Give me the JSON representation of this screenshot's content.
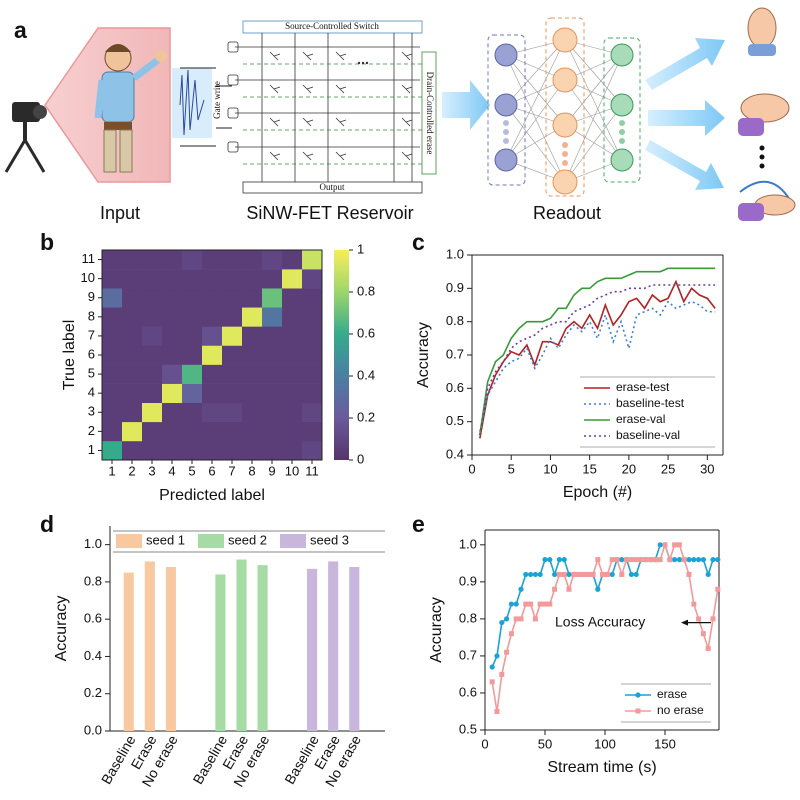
{
  "diagram": {
    "label": "a",
    "switch": "Source-Controlled Switch",
    "gate": "Gate write",
    "drain": "Drain-Controlled erase",
    "output": "Output",
    "input": "Input",
    "reservoir": "SiNW-FET Reservoir",
    "readout": "Readout"
  },
  "chart_data": [
    {
      "type": "heatmap",
      "label": "b",
      "xlabel": "Predicted label",
      "ylabel": "True label",
      "x_categories": [
        "1",
        "2",
        "3",
        "4",
        "5",
        "6",
        "7",
        "8",
        "9",
        "10",
        "11"
      ],
      "y_categories": [
        "1",
        "2",
        "3",
        "4",
        "5",
        "6",
        "7",
        "8",
        "9",
        "10",
        "11"
      ],
      "z": [
        [
          0.6,
          0.05,
          0.05,
          0.05,
          0.05,
          0.05,
          0.05,
          0.05,
          0.05,
          0.05,
          0.1
        ],
        [
          0.05,
          0.95,
          0.05,
          0.05,
          0.05,
          0.05,
          0.05,
          0.05,
          0.05,
          0.05,
          0.05
        ],
        [
          0.05,
          0.05,
          0.95,
          0.05,
          0.05,
          0.1,
          0.1,
          0.05,
          0.05,
          0.05,
          0.1
        ],
        [
          0.05,
          0.05,
          0.05,
          0.95,
          0.25,
          0.05,
          0.05,
          0.05,
          0.05,
          0.05,
          0.05
        ],
        [
          0.05,
          0.05,
          0.05,
          0.15,
          0.65,
          0.05,
          0.05,
          0.05,
          0.05,
          0.05,
          0.05
        ],
        [
          0.05,
          0.05,
          0.05,
          0.05,
          0.05,
          0.95,
          0.05,
          0.05,
          0.05,
          0.05,
          0.05
        ],
        [
          0.05,
          0.05,
          0.1,
          0.05,
          0.05,
          0.15,
          0.95,
          0.05,
          0.05,
          0.05,
          0.05
        ],
        [
          0.05,
          0.05,
          0.05,
          0.05,
          0.05,
          0.05,
          0.05,
          0.95,
          0.35,
          0.05,
          0.05
        ],
        [
          0.3,
          0.05,
          0.05,
          0.05,
          0.05,
          0.05,
          0.05,
          0.05,
          0.7,
          0.05,
          0.05
        ],
        [
          0.05,
          0.05,
          0.05,
          0.05,
          0.05,
          0.05,
          0.05,
          0.05,
          0.05,
          0.95,
          0.1
        ],
        [
          0.05,
          0.05,
          0.05,
          0.05,
          0.1,
          0.05,
          0.05,
          0.05,
          0.1,
          0.05,
          0.9
        ]
      ],
      "zlim": [
        0,
        1
      ],
      "zticks": [
        0,
        0.2,
        0.4,
        0.6,
        0.8,
        1
      ],
      "colorscale": [
        [
          0,
          "#55346b"
        ],
        [
          0.2,
          "#6b5a9c"
        ],
        [
          0.4,
          "#4a7fa3"
        ],
        [
          0.6,
          "#36ab8c"
        ],
        [
          0.8,
          "#9dd66b"
        ],
        [
          1,
          "#f6ee5a"
        ]
      ]
    },
    {
      "type": "line",
      "label": "c",
      "xlabel": "Epoch (#)",
      "ylabel": "Accuracy",
      "x": [
        1,
        2,
        3,
        4,
        5,
        6,
        7,
        8,
        9,
        10,
        11,
        12,
        13,
        14,
        15,
        16,
        17,
        18,
        19,
        20,
        21,
        22,
        23,
        24,
        25,
        26,
        27,
        28,
        29,
        30,
        31
      ],
      "xlim": [
        0,
        32
      ],
      "xticks": [
        0,
        5,
        10,
        15,
        20,
        25,
        30
      ],
      "ylim": [
        0.4,
        1.0
      ],
      "yticks": [
        0.4,
        0.5,
        0.6,
        0.7,
        0.8,
        0.9,
        {
          "value": 1,
          "label": "1.0"
        }
      ],
      "legend": "lower right",
      "series": [
        {
          "name": "erase-test",
          "color": "#b22222",
          "line_style": "solid",
          "values": [
            0.45,
            0.58,
            0.64,
            0.68,
            0.71,
            0.7,
            0.73,
            0.67,
            0.74,
            0.74,
            0.73,
            0.78,
            0.8,
            0.78,
            0.82,
            0.78,
            0.85,
            0.79,
            0.82,
            0.86,
            0.87,
            0.84,
            0.88,
            0.86,
            0.87,
            0.92,
            0.86,
            0.9,
            0.88,
            0.87,
            0.84
          ]
        },
        {
          "name": "baseline-test",
          "color": "#3f7fd0",
          "line_style": "dotted",
          "values": [
            0.47,
            0.58,
            0.62,
            0.66,
            0.68,
            0.69,
            0.72,
            0.66,
            0.7,
            0.75,
            0.72,
            0.76,
            0.79,
            0.77,
            0.8,
            0.75,
            0.82,
            0.74,
            0.8,
            0.72,
            0.82,
            0.83,
            0.84,
            0.82,
            0.86,
            0.84,
            0.85,
            0.86,
            0.85,
            0.83,
            0.83
          ]
        },
        {
          "name": "erase-val",
          "color": "#3a9a3a",
          "line_style": "solid",
          "values": [
            0.46,
            0.62,
            0.68,
            0.7,
            0.75,
            0.78,
            0.8,
            0.8,
            0.8,
            0.81,
            0.84,
            0.84,
            0.88,
            0.9,
            0.9,
            0.92,
            0.93,
            0.93,
            0.93,
            0.94,
            0.95,
            0.95,
            0.95,
            0.95,
            0.96,
            0.96,
            0.96,
            0.96,
            0.96,
            0.96,
            0.96
          ]
        },
        {
          "name": "baseline-val",
          "color": "#6a3fa0",
          "line_style": "dotted",
          "values": [
            0.46,
            0.6,
            0.65,
            0.68,
            0.72,
            0.74,
            0.75,
            0.76,
            0.78,
            0.79,
            0.8,
            0.8,
            0.83,
            0.84,
            0.85,
            0.87,
            0.88,
            0.89,
            0.89,
            0.9,
            0.9,
            0.9,
            0.91,
            0.91,
            0.91,
            0.91,
            0.91,
            0.91,
            0.91,
            0.91,
            0.91
          ]
        }
      ]
    },
    {
      "type": "bar",
      "label": "d",
      "ylabel": "Accuracy",
      "categories": [
        "Baseline",
        "Erase",
        "No erase"
      ],
      "ylim": [
        0,
        1.1
      ],
      "yticks": [
        {
          "value": 0,
          "label": "0.0"
        },
        0.2,
        0.4,
        0.6,
        0.8,
        {
          "value": 1,
          "label": "1.0"
        }
      ],
      "legend": "top",
      "series": [
        {
          "name": "seed 1",
          "color": "#f8c9a0",
          "values": [
            0.85,
            0.91,
            0.88
          ]
        },
        {
          "name": "seed 2",
          "color": "#a6dba6",
          "values": [
            0.84,
            0.92,
            0.89
          ]
        },
        {
          "name": "seed 3",
          "color": "#c9b6dc",
          "values": [
            0.87,
            0.91,
            0.88
          ]
        }
      ]
    },
    {
      "type": "line",
      "label": "e",
      "xlabel": "Stream time (s)",
      "ylabel": "Accuracy",
      "x": [
        6,
        10,
        14,
        18,
        22,
        26,
        30,
        34,
        38,
        42,
        46,
        50,
        54,
        58,
        62,
        66,
        70,
        74,
        78,
        82,
        86,
        90,
        94,
        98,
        102,
        106,
        110,
        114,
        118,
        122,
        126,
        130,
        134,
        138,
        142,
        146,
        150,
        154,
        158,
        162,
        166,
        170,
        174,
        178,
        182,
        186,
        190,
        194
      ],
      "xlim": [
        0,
        195
      ],
      "xticks": [
        0,
        50,
        100,
        150
      ],
      "ylim": [
        0.5,
        1.04
      ],
      "yticks": [
        0.5,
        0.6,
        0.7,
        0.8,
        0.9,
        {
          "value": 1,
          "label": "1.0"
        }
      ],
      "legend": "lower right",
      "annotation": "Loss Accuracy",
      "series": [
        {
          "name": "erase",
          "color": "#1aa3d4",
          "line_style": "solid",
          "marker": "circle",
          "values": [
            0.67,
            0.7,
            0.79,
            0.8,
            0.84,
            0.84,
            0.88,
            0.92,
            0.92,
            0.92,
            0.92,
            0.96,
            0.96,
            0.92,
            0.96,
            0.96,
            0.92,
            0.92,
            0.92,
            0.92,
            0.92,
            0.92,
            0.88,
            0.92,
            0.92,
            0.92,
            0.96,
            0.96,
            0.96,
            0.92,
            0.92,
            0.96,
            0.96,
            0.96,
            0.96,
            1.0,
            1.0,
            0.96,
            0.96,
            0.96,
            0.96,
            0.96,
            0.96,
            0.96,
            0.96,
            0.92,
            0.96,
            0.96
          ]
        },
        {
          "name": "no erase",
          "color": "#f29a9a",
          "line_style": "solid",
          "marker": "square",
          "values": [
            0.63,
            0.55,
            0.65,
            0.71,
            0.76,
            0.8,
            0.8,
            0.84,
            0.84,
            0.8,
            0.84,
            0.84,
            0.84,
            0.88,
            0.92,
            0.92,
            0.88,
            0.92,
            0.92,
            0.92,
            0.92,
            0.92,
            0.96,
            0.92,
            0.92,
            0.96,
            0.96,
            0.92,
            0.96,
            0.96,
            0.96,
            0.96,
            0.96,
            0.96,
            0.96,
            0.96,
            1.0,
            0.96,
            1.0,
            1.0,
            0.96,
            0.92,
            0.84,
            0.8,
            0.76,
            0.72,
            0.8,
            0.88
          ]
        }
      ]
    }
  ]
}
